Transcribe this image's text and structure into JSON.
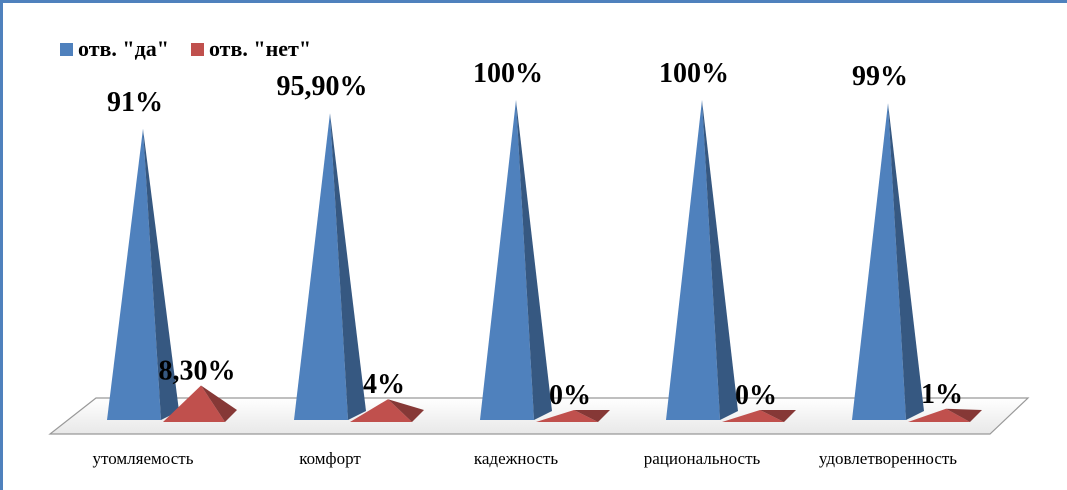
{
  "chart_data": {
    "type": "bar",
    "categories": [
      "утомляемость",
      "комфорт",
      "кадежность",
      "рациональность",
      "удовлетворенность"
    ],
    "series": [
      {
        "name": "отв. \"да\"",
        "color": "#4f81bd",
        "values": [
          91,
          95.9,
          100,
          100,
          99
        ],
        "labels": [
          "91%",
          "95,90%",
          "100%",
          "100%",
          "99%"
        ]
      },
      {
        "name": "отв. \"нет\"",
        "color": "#c0504d",
        "values": [
          8.3,
          4,
          0,
          0,
          1
        ],
        "labels": [
          "8,30%",
          "4%",
          "0%",
          "0%",
          "1%"
        ]
      }
    ],
    "ylim": [
      0,
      100
    ],
    "legend": "top-left",
    "grid": false
  }
}
